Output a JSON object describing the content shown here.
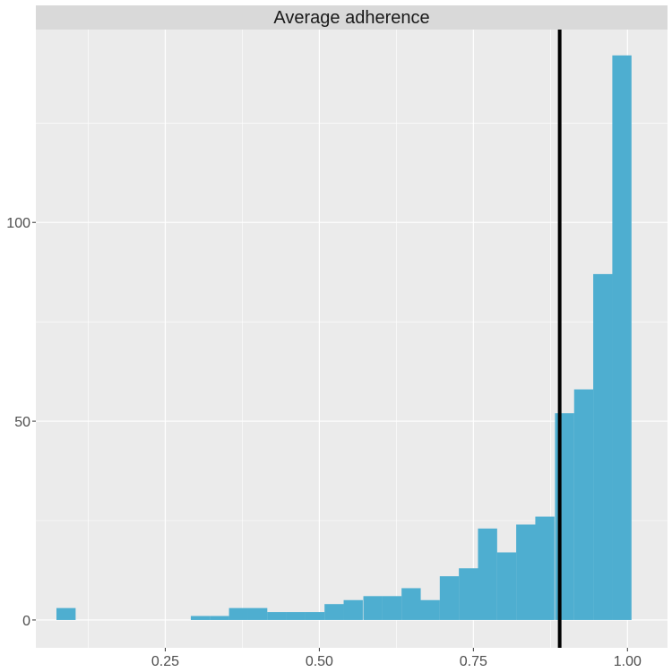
{
  "chart_data": {
    "type": "bar",
    "title": "",
    "facet_label": "Average adherence",
    "xlabel": "",
    "ylabel": "",
    "xlim": [
      0.04,
      1.065
    ],
    "ylim": [
      -7,
      148.5
    ],
    "x_ticks": [
      {
        "value": 0.25,
        "label": "0.25"
      },
      {
        "value": 0.5,
        "label": "0.50"
      },
      {
        "value": 0.75,
        "label": "0.75"
      },
      {
        "value": 1.0,
        "label": "1.00"
      }
    ],
    "y_ticks": [
      {
        "value": 0,
        "label": "0"
      },
      {
        "value": 50,
        "label": "50"
      },
      {
        "value": 100,
        "label": "100"
      }
    ],
    "bin_width": 0.0311,
    "bins": [
      {
        "x": 0.089,
        "count": 3
      },
      {
        "x": 0.12,
        "count": 0
      },
      {
        "x": 0.151,
        "count": 0
      },
      {
        "x": 0.182,
        "count": 0
      },
      {
        "x": 0.213,
        "count": 0
      },
      {
        "x": 0.244,
        "count": 0
      },
      {
        "x": 0.276,
        "count": 0
      },
      {
        "x": 0.307,
        "count": 1
      },
      {
        "x": 0.338,
        "count": 1
      },
      {
        "x": 0.369,
        "count": 3
      },
      {
        "x": 0.4,
        "count": 3
      },
      {
        "x": 0.431,
        "count": 2
      },
      {
        "x": 0.462,
        "count": 2
      },
      {
        "x": 0.493,
        "count": 2
      },
      {
        "x": 0.524,
        "count": 4
      },
      {
        "x": 0.555,
        "count": 5
      },
      {
        "x": 0.587,
        "count": 6
      },
      {
        "x": 0.618,
        "count": 6
      },
      {
        "x": 0.649,
        "count": 8
      },
      {
        "x": 0.68,
        "count": 5
      },
      {
        "x": 0.711,
        "count": 11
      },
      {
        "x": 0.742,
        "count": 13
      },
      {
        "x": 0.773,
        "count": 23
      },
      {
        "x": 0.804,
        "count": 17
      },
      {
        "x": 0.835,
        "count": 24
      },
      {
        "x": 0.866,
        "count": 26
      },
      {
        "x": 0.898,
        "count": 52
      },
      {
        "x": 0.929,
        "count": 58
      },
      {
        "x": 0.96,
        "count": 87
      },
      {
        "x": 0.991,
        "count": 142
      }
    ],
    "vline": {
      "x": 0.89
    },
    "colors": {
      "bar": "#4eaed0",
      "panel": "#ebebeb",
      "strip": "#d9d9d9",
      "grid": "#ffffff",
      "vline": "#000000",
      "tick_text": "#4d4d4d",
      "strip_text": "#1a1a1a"
    },
    "grid": true,
    "legend": "none"
  }
}
